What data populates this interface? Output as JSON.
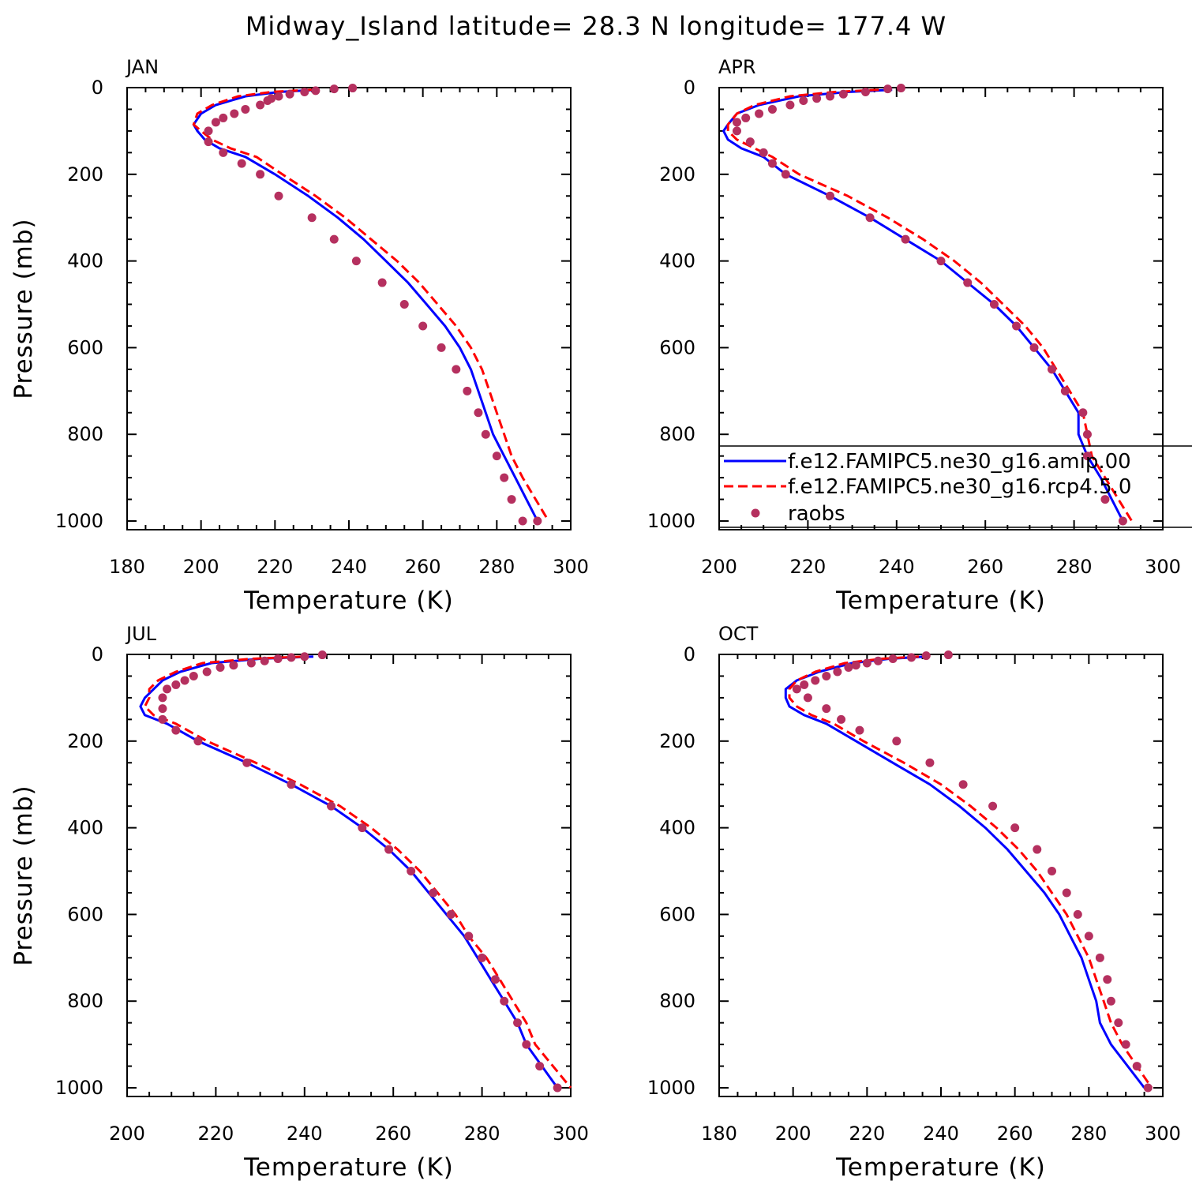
{
  "figure_title": "Midway_Island  latitude= 28.3 N longitude= 177.4 W",
  "colors": {
    "model_amip": "#0000ff",
    "model_rcp": "#ff0000",
    "raobs": "#b5305f"
  },
  "legend": {
    "entries": [
      "f.e12.FAMIPC5.ne30_g16.amip.00",
      "f.e12.FAMIPC5.ne30_g16.rcp4.5.0",
      "raobs"
    ]
  },
  "chart_data": [
    {
      "type": "line",
      "panel": "JAN",
      "xlabel": "Temperature (K)",
      "ylabel": "Pressure (mb)",
      "xlim": [
        180,
        300
      ],
      "ylim": [
        1020,
        0
      ],
      "xticks": [
        "180",
        "200",
        "220",
        "240",
        "260",
        "280",
        "300"
      ],
      "yticks": [
        "0",
        "200",
        "400",
        "600",
        "800",
        "1000"
      ],
      "series": [
        {
          "name": "f.e12.FAMIPC5.ne30_g16.amip.00",
          "style": "solid",
          "x": [
            232,
            221,
            212,
            204,
            200,
            198,
            199,
            201,
            205,
            212,
            220,
            229,
            237,
            244,
            250,
            256,
            261,
            266,
            270,
            273,
            275,
            277,
            279,
            282,
            285,
            291
          ],
          "y": [
            5,
            10,
            20,
            40,
            60,
            85,
            100,
            120,
            140,
            160,
            200,
            250,
            300,
            350,
            400,
            450,
            500,
            550,
            600,
            650,
            700,
            750,
            800,
            850,
            900,
            1000
          ]
        },
        {
          "name": "f.e12.FAMIPC5.ne30_g16.rcp4.5.0",
          "style": "dashed",
          "x": [
            230,
            219,
            210,
            203,
            199,
            198,
            200,
            203,
            208,
            215,
            222,
            231,
            239,
            246,
            253,
            259,
            264,
            269,
            273,
            276,
            278,
            280,
            282,
            284,
            287,
            294
          ],
          "y": [
            5,
            10,
            20,
            40,
            60,
            85,
            100,
            120,
            140,
            160,
            200,
            250,
            300,
            350,
            400,
            450,
            500,
            550,
            600,
            650,
            700,
            750,
            800,
            850,
            900,
            1000
          ]
        },
        {
          "name": "raobs",
          "style": "markers",
          "x": [
            241,
            236,
            231,
            228,
            224,
            221,
            219,
            218,
            216,
            212,
            209,
            206,
            204,
            202,
            202,
            206,
            211,
            216,
            221,
            230,
            236,
            242,
            249,
            255,
            260,
            265,
            269,
            272,
            275,
            277,
            280,
            282,
            284,
            287,
            291
          ],
          "y": [
            1,
            3,
            7,
            10,
            15,
            20,
            25,
            30,
            40,
            50,
            60,
            70,
            80,
            100,
            125,
            150,
            175,
            200,
            250,
            300,
            350,
            400,
            450,
            500,
            550,
            600,
            650,
            700,
            750,
            800,
            850,
            900,
            950,
            1000,
            1000
          ]
        }
      ]
    },
    {
      "type": "line",
      "panel": "APR",
      "xlabel": "Temperature (K)",
      "ylabel": "",
      "xlim": [
        200,
        300
      ],
      "ylim": [
        1020,
        0
      ],
      "xticks": [
        "200",
        "220",
        "240",
        "260",
        "280",
        "300"
      ],
      "yticks": [
        "0",
        "200",
        "400",
        "600",
        "800",
        "1000"
      ],
      "series": [
        {
          "name": "f.e12.FAMIPC5.ne30_g16.amip.00",
          "style": "solid",
          "x": [
            239,
            229,
            218,
            209,
            204,
            202,
            201,
            202,
            205,
            210,
            215,
            225,
            234,
            242,
            250,
            256,
            262,
            267,
            271,
            275,
            278,
            281,
            281,
            283,
            286,
            291
          ],
          "y": [
            5,
            10,
            20,
            40,
            60,
            85,
            100,
            120,
            140,
            160,
            200,
            250,
            300,
            350,
            400,
            450,
            500,
            550,
            600,
            650,
            700,
            750,
            800,
            850,
            900,
            1000
          ]
        },
        {
          "name": "f.e12.FAMIPC5.ne30_g16.rcp4.5.0",
          "style": "dashed",
          "x": [
            236,
            226,
            216,
            208,
            204,
            202,
            202,
            204,
            208,
            212,
            218,
            229,
            238,
            246,
            253,
            259,
            264,
            269,
            273,
            276,
            279,
            282,
            283,
            284,
            287,
            293
          ],
          "y": [
            5,
            10,
            20,
            40,
            60,
            85,
            100,
            120,
            140,
            160,
            200,
            250,
            300,
            350,
            400,
            450,
            500,
            550,
            600,
            650,
            700,
            750,
            800,
            850,
            900,
            1000
          ]
        },
        {
          "name": "raobs",
          "style": "markers",
          "x": [
            241,
            238,
            233,
            228,
            225,
            222,
            219,
            216,
            212,
            209,
            206,
            204,
            204,
            207,
            210,
            212,
            215,
            225,
            234,
            242,
            250,
            256,
            262,
            267,
            271,
            275,
            278,
            282,
            283,
            283,
            287,
            291
          ],
          "y": [
            1,
            3,
            10,
            15,
            20,
            25,
            30,
            40,
            50,
            60,
            70,
            80,
            100,
            125,
            150,
            175,
            200,
            250,
            300,
            350,
            400,
            450,
            500,
            550,
            600,
            650,
            700,
            750,
            800,
            850,
            950,
            1000
          ]
        }
      ]
    },
    {
      "type": "line",
      "panel": "JUL",
      "xlabel": "Temperature (K)",
      "ylabel": "Pressure (mb)",
      "xlim": [
        200,
        300
      ],
      "ylim": [
        1020,
        0
      ],
      "xticks": [
        "200",
        "220",
        "240",
        "260",
        "280",
        "300"
      ],
      "yticks": [
        "0",
        "200",
        "400",
        "600",
        "800",
        "1000"
      ],
      "series": [
        {
          "name": "f.e12.FAMIPC5.ne30_g16.amip.00",
          "style": "solid",
          "x": [
            242,
            230,
            219,
            212,
            208,
            206,
            204,
            203,
            204,
            209,
            216,
            227,
            237,
            246,
            253,
            259,
            264,
            268,
            272,
            276,
            279,
            282,
            285,
            288,
            290,
            297
          ],
          "y": [
            5,
            10,
            20,
            40,
            60,
            80,
            100,
            120,
            140,
            160,
            200,
            250,
            300,
            350,
            400,
            450,
            500,
            550,
            600,
            650,
            700,
            750,
            800,
            850,
            900,
            1000
          ]
        },
        {
          "name": "f.e12.FAMIPC5.ne30_g16.rcp4.5.0",
          "style": "dashed",
          "x": [
            240,
            228,
            217,
            211,
            207,
            205,
            205,
            204,
            206,
            211,
            218,
            229,
            239,
            248,
            255,
            261,
            266,
            270,
            274,
            277,
            281,
            284,
            287,
            290,
            292,
            300
          ],
          "y": [
            5,
            10,
            20,
            40,
            60,
            80,
            100,
            120,
            140,
            160,
            200,
            250,
            300,
            350,
            400,
            450,
            500,
            550,
            600,
            650,
            700,
            750,
            800,
            850,
            900,
            1000
          ]
        },
        {
          "name": "raobs",
          "style": "markers",
          "x": [
            244,
            240,
            237,
            234,
            231,
            228,
            224,
            221,
            218,
            215,
            213,
            211,
            209,
            208,
            208,
            208,
            211,
            216,
            227,
            237,
            246,
            253,
            259,
            264,
            269,
            273,
            277,
            280,
            283,
            285,
            288,
            290,
            293,
            297
          ],
          "y": [
            1,
            5,
            7,
            10,
            15,
            20,
            25,
            30,
            40,
            50,
            60,
            70,
            80,
            100,
            125,
            150,
            175,
            200,
            250,
            300,
            350,
            400,
            450,
            500,
            550,
            600,
            650,
            700,
            750,
            800,
            850,
            900,
            950,
            1000
          ]
        }
      ]
    },
    {
      "type": "line",
      "panel": "OCT",
      "xlabel": "Temperature (K)",
      "ylabel": "",
      "xlim": [
        180,
        300
      ],
      "ylim": [
        1020,
        0
      ],
      "xticks": [
        "180",
        "200",
        "220",
        "240",
        "260",
        "280",
        "300"
      ],
      "yticks": [
        "0",
        "200",
        "400",
        "600",
        "800",
        "1000"
      ],
      "series": [
        {
          "name": "f.e12.FAMIPC5.ne30_g16.amip.00",
          "style": "solid",
          "x": [
            236,
            226,
            216,
            207,
            201,
            198,
            198,
            199,
            203,
            209,
            217,
            227,
            237,
            245,
            252,
            258,
            263,
            268,
            272,
            275,
            278,
            280,
            282,
            283,
            286,
            295
          ],
          "y": [
            5,
            10,
            20,
            40,
            60,
            80,
            100,
            120,
            140,
            160,
            200,
            250,
            300,
            350,
            400,
            450,
            500,
            550,
            600,
            650,
            700,
            750,
            800,
            850,
            900,
            1000
          ]
        },
        {
          "name": "f.e12.FAMIPC5.ne30_g16.rcp4.5.0",
          "style": "dashed",
          "x": [
            234,
            224,
            214,
            206,
            201,
            199,
            199,
            201,
            205,
            211,
            219,
            230,
            240,
            248,
            255,
            261,
            266,
            270,
            274,
            277,
            280,
            282,
            284,
            286,
            289,
            297
          ],
          "y": [
            5,
            10,
            20,
            40,
            60,
            80,
            100,
            120,
            140,
            160,
            200,
            250,
            300,
            350,
            400,
            450,
            500,
            550,
            600,
            650,
            700,
            750,
            800,
            850,
            900,
            1000
          ]
        },
        {
          "name": "raobs",
          "style": "markers",
          "x": [
            242,
            236,
            232,
            227,
            223,
            220,
            217,
            215,
            212,
            209,
            206,
            203,
            201,
            204,
            209,
            213,
            218,
            228,
            237,
            246,
            254,
            260,
            266,
            270,
            274,
            277,
            280,
            283,
            285,
            286,
            288,
            290,
            293,
            296
          ],
          "y": [
            1,
            3,
            7,
            10,
            15,
            20,
            25,
            30,
            40,
            50,
            60,
            70,
            80,
            100,
            125,
            150,
            175,
            200,
            250,
            300,
            350,
            400,
            450,
            500,
            550,
            600,
            650,
            700,
            750,
            800,
            850,
            900,
            950,
            1000
          ]
        }
      ]
    }
  ]
}
